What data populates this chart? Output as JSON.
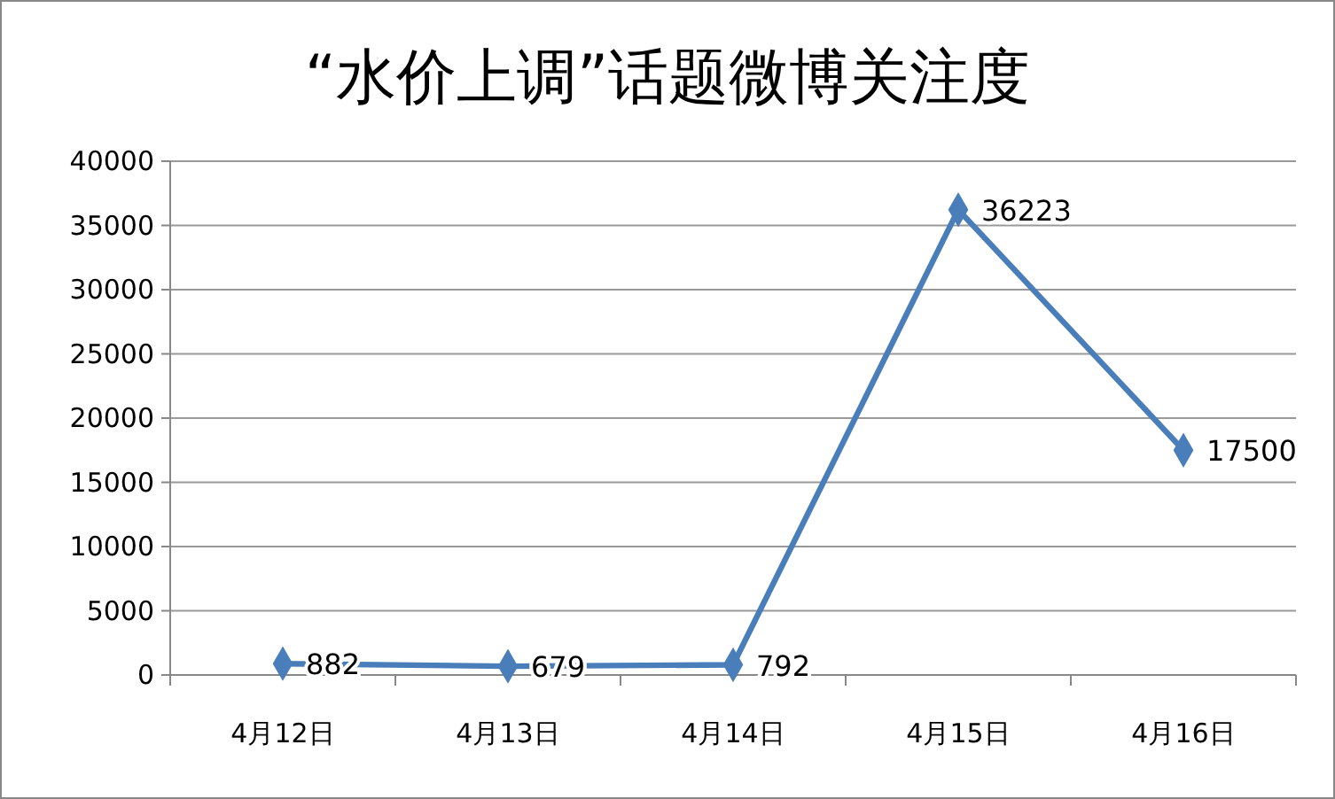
{
  "chart_data": {
    "type": "line",
    "title": "“水价上调”话题微博关注度",
    "categories": [
      "4月12日",
      "4月13日",
      "4月14日",
      "4月15日",
      "4月16日"
    ],
    "series": [
      {
        "color": "#4a7ebb",
        "values": [
          882,
          679,
          792,
          36223,
          17500
        ]
      }
    ],
    "ylim": [
      0,
      40000
    ],
    "yticks": [
      0,
      5000,
      10000,
      15000,
      20000,
      25000,
      30000,
      35000,
      40000
    ],
    "grid": "y",
    "marker": "diamond",
    "line_style": "solid",
    "data_labels": true
  }
}
